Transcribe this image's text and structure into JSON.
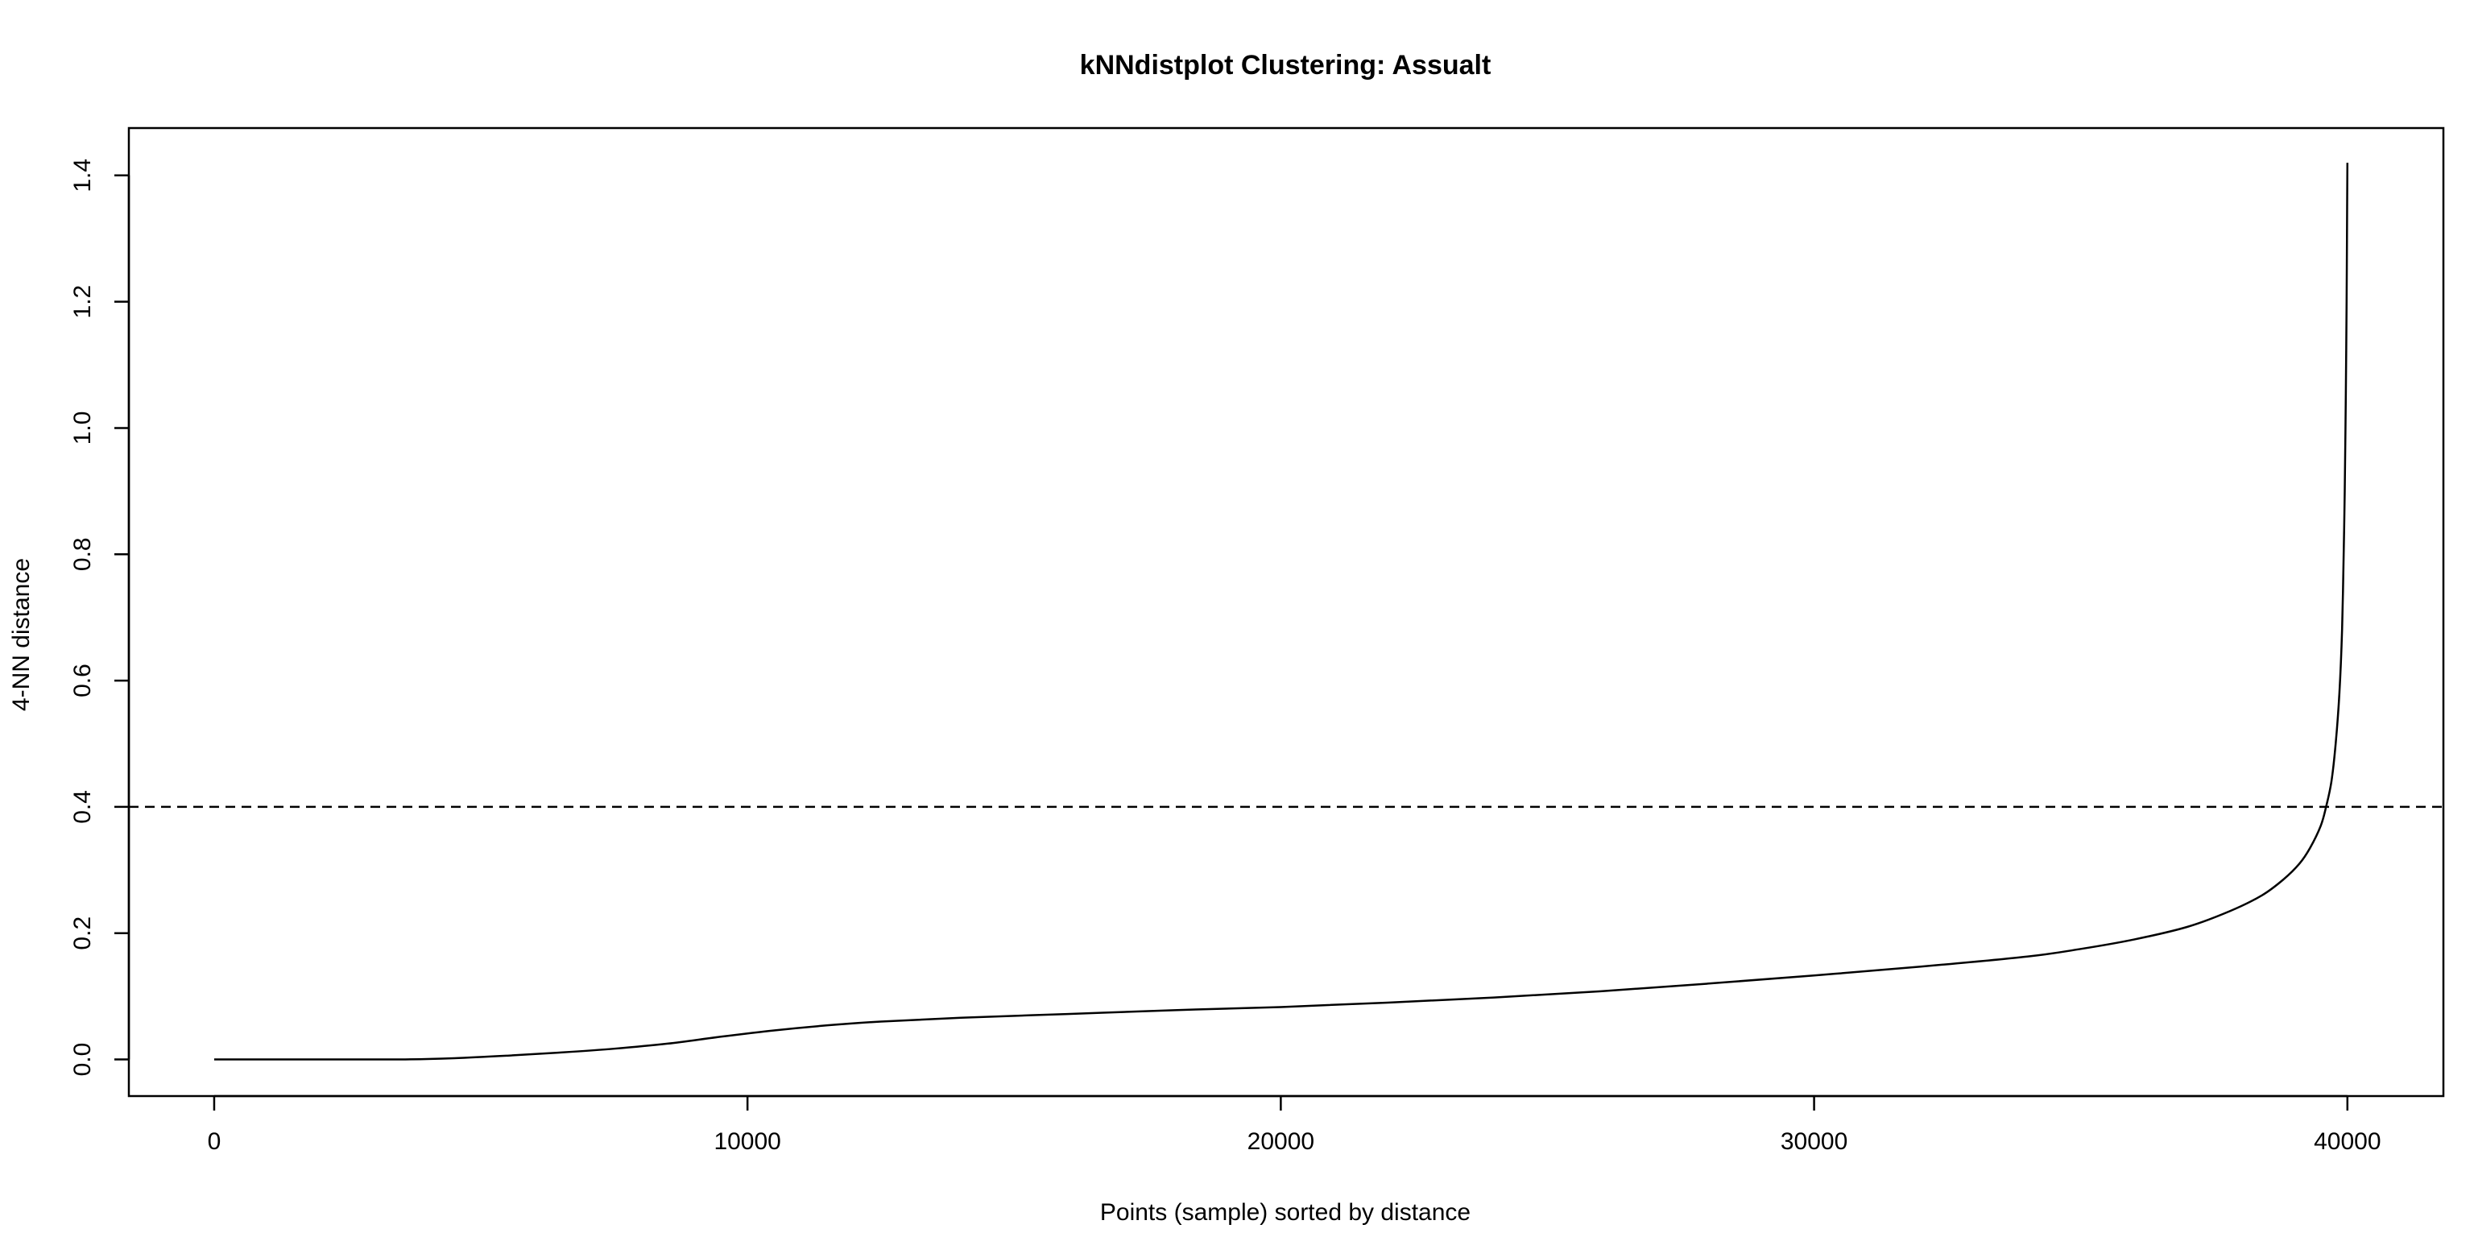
{
  "chart_data": {
    "type": "line",
    "title": "kNNdistplot Clustering: Assualt",
    "xlabel": "Points (sample) sorted by distance",
    "ylabel": "4-NN distance",
    "xlim": [
      -1600,
      41800
    ],
    "ylim": [
      -0.058,
      1.475
    ],
    "x_ticks": [
      0,
      10000,
      20000,
      30000,
      40000
    ],
    "x_tick_labels": [
      "0",
      "10000",
      "20000",
      "30000",
      "40000"
    ],
    "y_ticks": [
      0.0,
      0.2,
      0.4,
      0.6,
      0.8,
      1.0,
      1.2,
      1.4
    ],
    "y_tick_labels": [
      "0.0",
      "0.2",
      "0.4",
      "0.6",
      "0.8",
      "1.0",
      "1.2",
      "1.4"
    ],
    "grid": false,
    "reference_line": {
      "axis": "y",
      "value": 0.4,
      "style": "dashed"
    },
    "series": [
      {
        "x": [
          0,
          2000,
          3500,
          4500,
          5500,
          6500,
          7500,
          8500,
          9500,
          10500,
          11500,
          12500,
          14000,
          16000,
          18000,
          20000,
          22000,
          24000,
          26000,
          28000,
          30000,
          32000,
          34000,
          35000,
          36000,
          37000,
          37800,
          38400,
          38800,
          39100,
          39300,
          39500,
          39600,
          39700,
          39780,
          39850,
          39900,
          39930,
          39950,
          39970,
          39985,
          39995,
          40000
        ],
        "y": [
          0.0,
          0.0,
          0.0,
          0.002,
          0.006,
          0.011,
          0.017,
          0.025,
          0.036,
          0.046,
          0.054,
          0.06,
          0.066,
          0.072,
          0.078,
          0.083,
          0.09,
          0.098,
          0.108,
          0.12,
          0.133,
          0.147,
          0.163,
          0.175,
          0.19,
          0.21,
          0.235,
          0.26,
          0.285,
          0.31,
          0.335,
          0.37,
          0.4,
          0.44,
          0.5,
          0.58,
          0.68,
          0.8,
          0.9,
          1.05,
          1.2,
          1.35,
          1.42
        ],
        "color": "#000000"
      }
    ]
  }
}
